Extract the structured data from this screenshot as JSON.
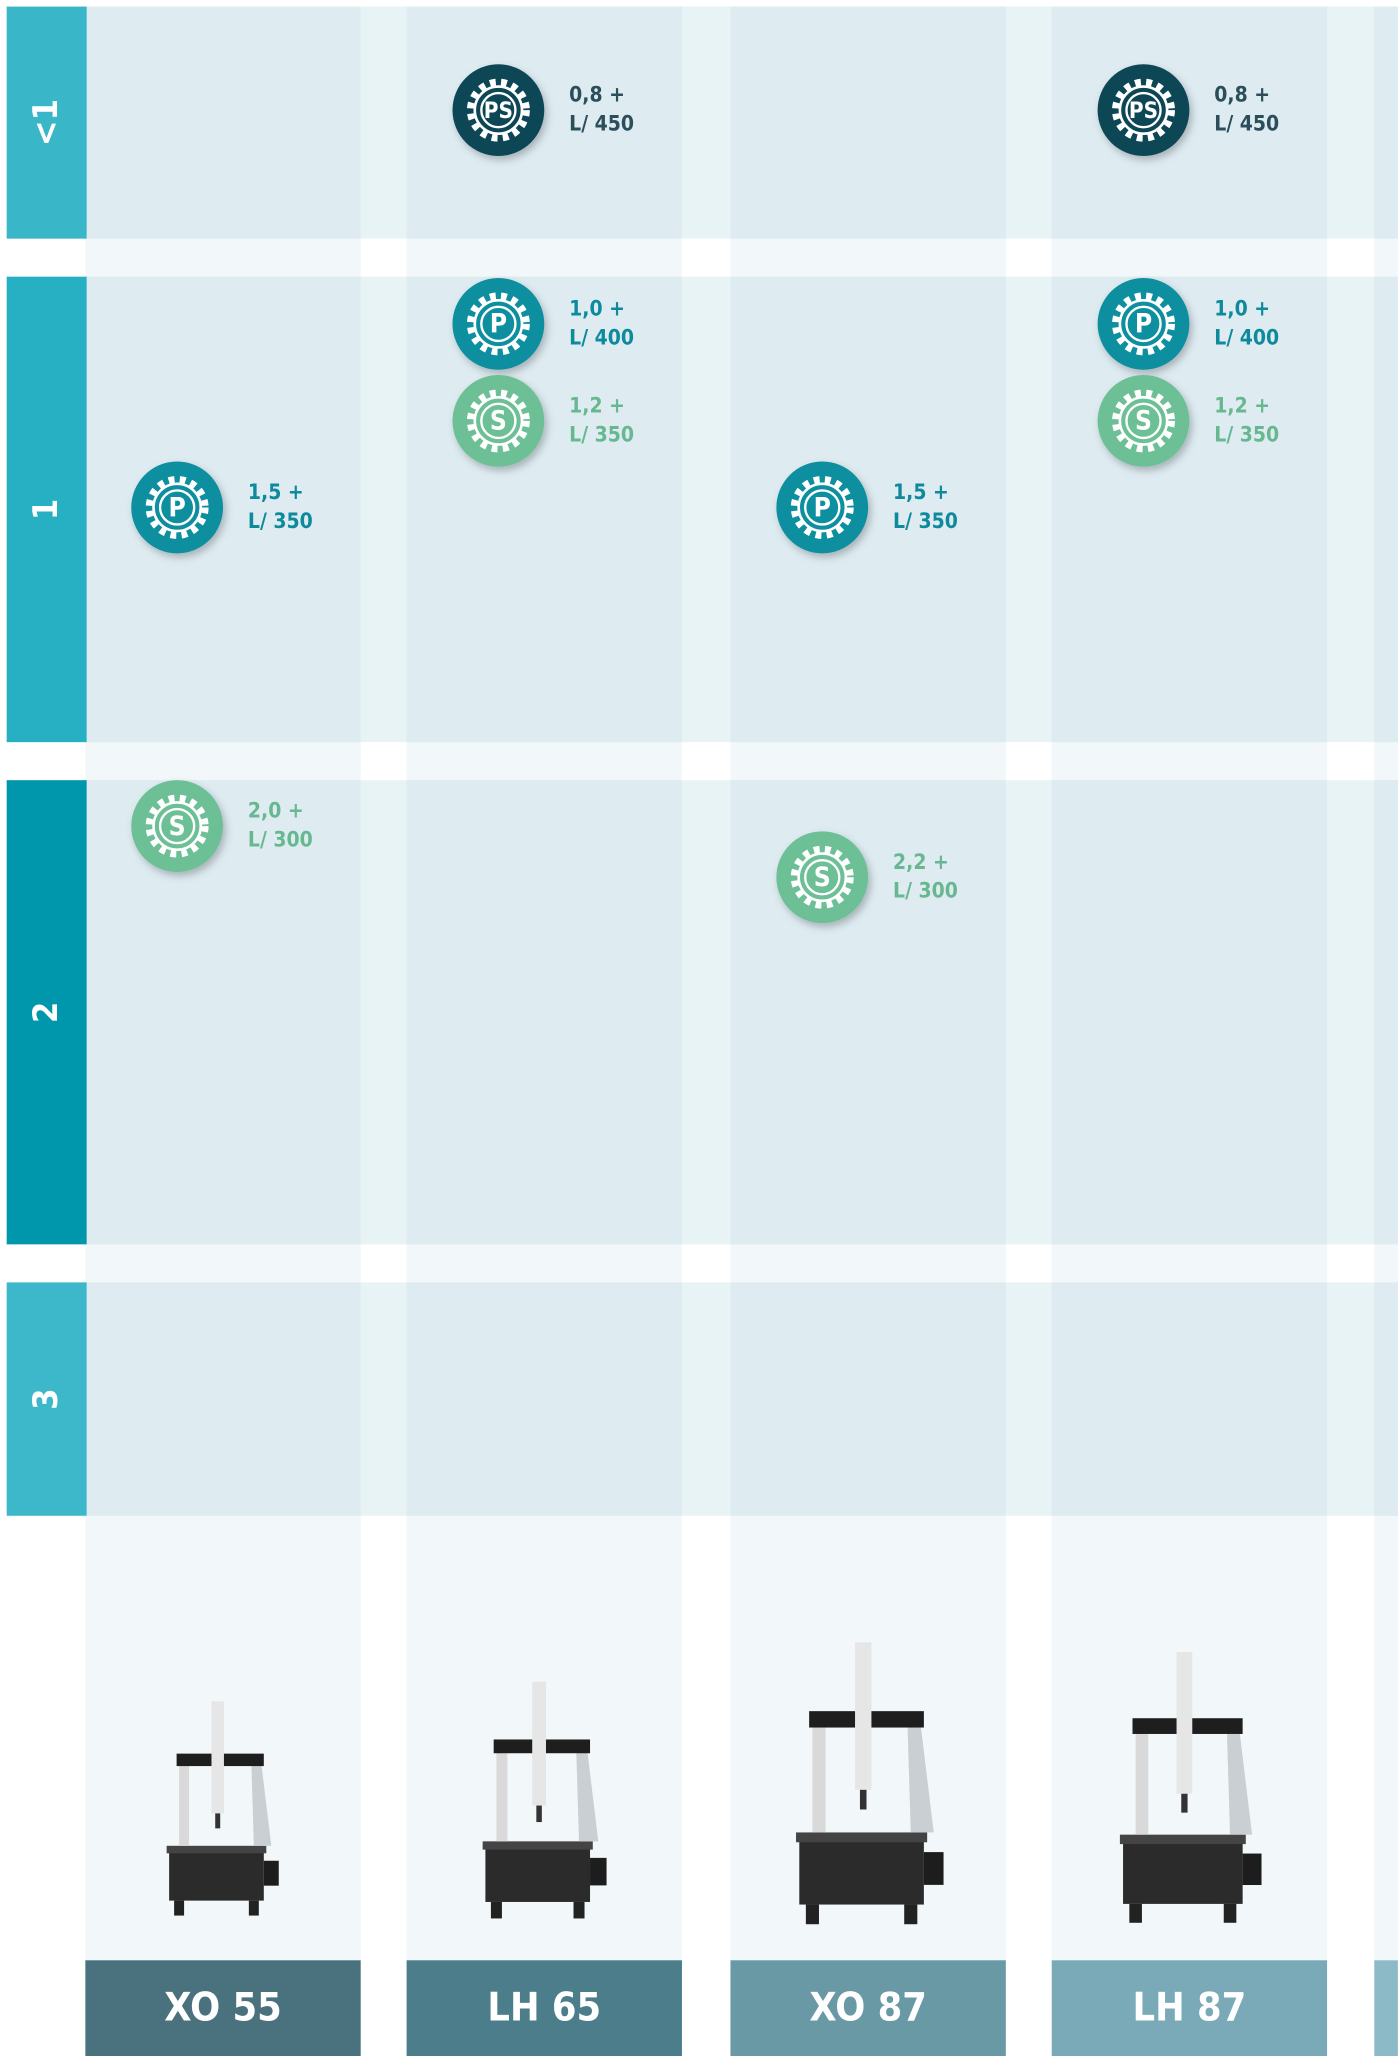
{
  "rows": [
    {
      "label": "<1",
      "cells": [
        [],
        [
          {
            "icon": "PS",
            "line1": "0,8 +",
            "line2": "L/ 450"
          }
        ],
        [],
        [
          {
            "icon": "PS",
            "line1": "0,8 +",
            "line2": "L/ 450"
          }
        ]
      ]
    },
    {
      "label": "1",
      "cells": [
        [
          {
            "icon": "P",
            "line1": "1,5 +",
            "line2": "L/ 350"
          }
        ],
        [
          {
            "icon": "P",
            "line1": "1,0 +",
            "line2": "L/ 400"
          },
          {
            "icon": "S",
            "line1": "1,2 +",
            "line2": "L/ 350"
          }
        ],
        [
          {
            "icon": "P",
            "line1": "1,5 +",
            "line2": "L/ 350"
          }
        ],
        [
          {
            "icon": "P",
            "line1": "1,0 +",
            "line2": "L/ 400"
          },
          {
            "icon": "S",
            "line1": "1,2 +",
            "line2": "L/ 350"
          }
        ]
      ]
    },
    {
      "label": "2",
      "cells": [
        [
          {
            "icon": "S",
            "line1": "2,0 +",
            "line2": "L/ 300"
          }
        ],
        [],
        [
          {
            "icon": "S",
            "line1": "2,2 +",
            "line2": "L/ 300"
          }
        ],
        []
      ]
    },
    {
      "label": "3",
      "cells": [
        [],
        [],
        [],
        []
      ]
    }
  ],
  "columns": [
    {
      "name": "XO 55"
    },
    {
      "name": "LH 65"
    },
    {
      "name": "XO 87"
    },
    {
      "name": "LH 87"
    }
  ]
}
